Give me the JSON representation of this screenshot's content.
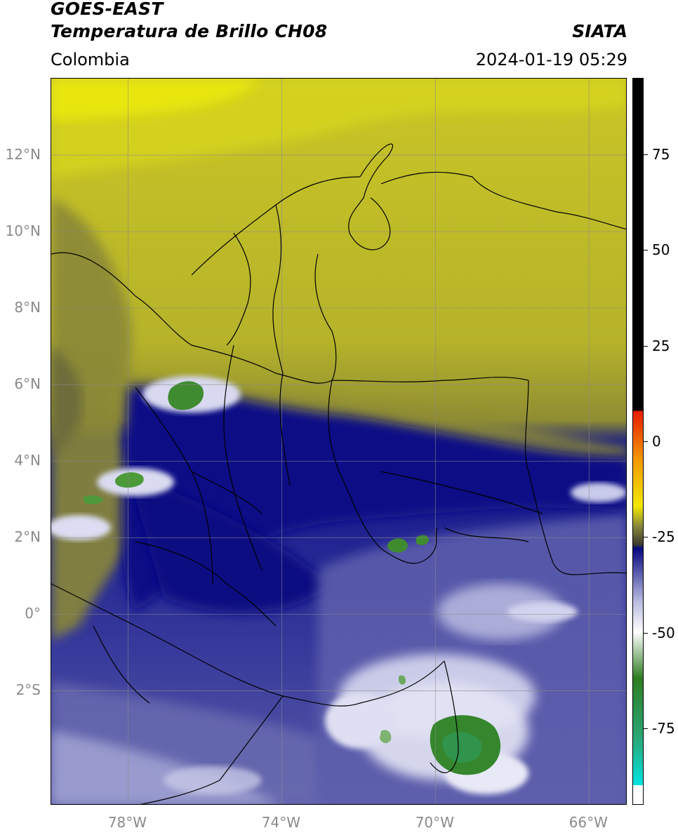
{
  "header": {
    "satellite": "GOES-EAST",
    "product": "Temperatura de Brillo CH08",
    "organization": "SIATA",
    "region": "Colombia",
    "datetime": "2024-01-19 05:29"
  },
  "map": {
    "extent": {
      "lon_min": -80,
      "lon_max": -65,
      "lat_min": -5,
      "lat_max": 14
    },
    "lat_ticks": [
      {
        "value": 12,
        "label": "12°N"
      },
      {
        "value": 10,
        "label": "10°N"
      },
      {
        "value": 8,
        "label": "8°N"
      },
      {
        "value": 6,
        "label": "6°N"
      },
      {
        "value": 4,
        "label": "4°N"
      },
      {
        "value": 2,
        "label": "2°N"
      },
      {
        "value": 0,
        "label": "0°"
      },
      {
        "value": -2,
        "label": "2°S"
      }
    ],
    "lon_ticks": [
      {
        "value": -78,
        "label": "78°W"
      },
      {
        "value": -74,
        "label": "74°W"
      },
      {
        "value": -70,
        "label": "70°W"
      },
      {
        "value": -66,
        "label": "66°W"
      }
    ]
  },
  "colorbar": {
    "range": [
      -95,
      95
    ],
    "ticks": [
      {
        "value": 75,
        "label": "75"
      },
      {
        "value": 50,
        "label": "50"
      },
      {
        "value": 25,
        "label": "25"
      },
      {
        "value": 0,
        "label": "0"
      },
      {
        "value": -25,
        "label": "-25"
      },
      {
        "value": -50,
        "label": "-50"
      },
      {
        "value": -75,
        "label": "-75"
      }
    ],
    "colors": {
      "top": "#000000",
      "red": "#e81c00",
      "orange": "#f29a00",
      "yellow": "#f2e800",
      "olive": "#8c8a3a",
      "dark_olive": "#3d3d30",
      "navy": "#0a0a80",
      "lavender": "#b9bce0",
      "white": "#ffffff",
      "green": "#2e7d22",
      "teal": "#2aa878",
      "cyan": "#00e3e3"
    }
  },
  "palette": {
    "yellow_bright": "#e5e513",
    "yellow": "#c7c424",
    "olive": "#9a972f",
    "olive_dark": "#6b6a38",
    "navy": "#0b0d86",
    "blue": "#2c2e96",
    "lavender": "#6f72b4",
    "pale": "#c8c9e6",
    "green": "#3e8a30"
  }
}
